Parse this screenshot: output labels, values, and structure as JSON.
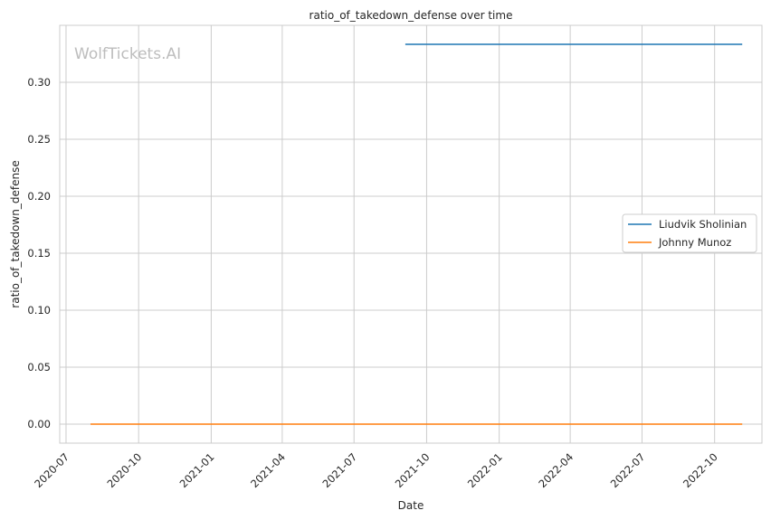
{
  "chart_data": {
    "type": "line",
    "title": "ratio_of_takedown_defense over time",
    "xlabel": "Date",
    "ylabel": "ratio_of_takedown_defense",
    "watermark": "WolfTickets.AI",
    "x_axis_type": "date",
    "xlim": [
      "2020-06-23",
      "2022-11-30"
    ],
    "ylim": [
      -0.0167,
      0.35
    ],
    "x_ticks": [
      "2020-07-01",
      "2020-10-01",
      "2021-01-01",
      "2021-04-01",
      "2021-07-01",
      "2021-10-01",
      "2022-01-01",
      "2022-04-01",
      "2022-07-01",
      "2022-10-01"
    ],
    "x_tick_labels": [
      "2020-07",
      "2020-10",
      "2021-01",
      "2021-04",
      "2021-07",
      "2021-10",
      "2022-01",
      "2022-04",
      "2022-07",
      "2022-10"
    ],
    "y_ticks": [
      0.0,
      0.05,
      0.1,
      0.15,
      0.2,
      0.25,
      0.3
    ],
    "y_tick_labels": [
      "0.00",
      "0.05",
      "0.10",
      "0.15",
      "0.20",
      "0.25",
      "0.30"
    ],
    "grid": true,
    "legend_position": "center-right",
    "series": [
      {
        "name": "Liudvik Sholinian",
        "color": "#1f77b4",
        "x": [
          "2021-09-04",
          "2022-11-05"
        ],
        "y": [
          0.3333,
          0.3333
        ]
      },
      {
        "name": "Johnny Munoz",
        "color": "#ff7f0e",
        "x": [
          "2020-08-01",
          "2022-11-05"
        ],
        "y": [
          0.0,
          0.0
        ]
      }
    ]
  }
}
